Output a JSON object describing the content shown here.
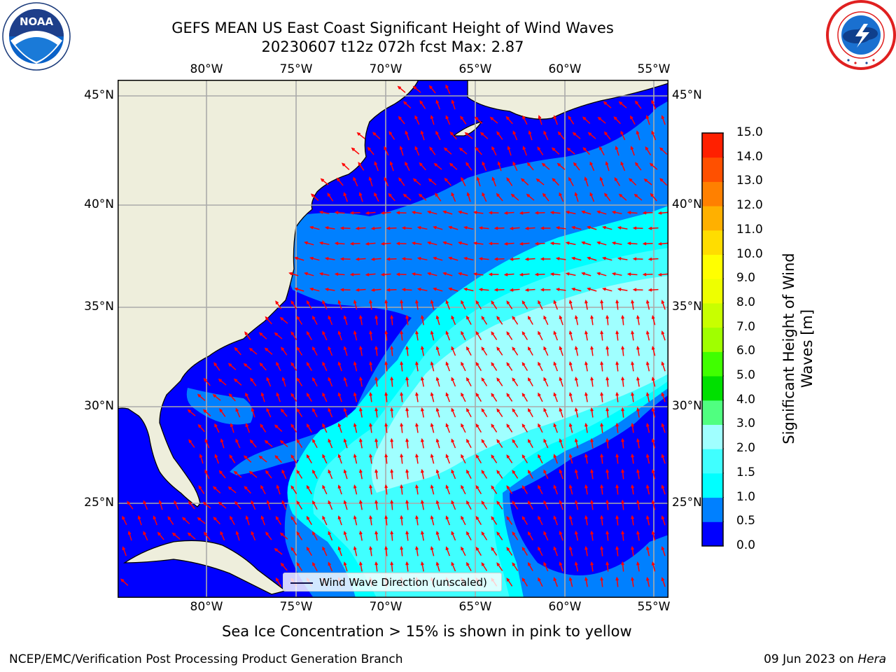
{
  "title": {
    "line1": "GEFS MEAN US East Coast Significant Height of Wind Waves",
    "line2": "20230607 t12z 072h fcst   Max: 2.87"
  },
  "logos": {
    "left": {
      "name": "noaa-logo",
      "text": "NOAA"
    },
    "right": {
      "name": "nws-logo",
      "text": "NATIONAL WEATHER SERVICE"
    }
  },
  "map": {
    "lon_labels": [
      "80°W",
      "75°W",
      "70°W",
      "65°W",
      "60°W",
      "55°W"
    ],
    "lat_labels": [
      "45°N",
      "40°N",
      "35°N",
      "30°N",
      "25°N"
    ],
    "lon_range": [
      -85,
      -54.5
    ],
    "lat_range": [
      20.5,
      46
    ],
    "grid": true,
    "land_color": "#eeeedc",
    "vector_color": "#ff0000",
    "legend_text": "Wind Wave Direction (unscaled)"
  },
  "colorbar": {
    "label": "Significant Height of Wind Waves [m]",
    "label_line1": "Significant Height of Wind",
    "label_line2": "Waves [m]",
    "ticks": [
      "0.0",
      "0.5",
      "1.0",
      "1.5",
      "2.0",
      "3.0",
      "4.0",
      "5.0",
      "6.0",
      "7.0",
      "8.0",
      "9.0",
      "10.0",
      "11.0",
      "12.0",
      "13.0",
      "14.0",
      "15.0"
    ],
    "colors": [
      "#0000ff",
      "#0080ff",
      "#00ffff",
      "#40ffff",
      "#a0ffff",
      "#50ff80",
      "#00e000",
      "#40ff00",
      "#a0ff00",
      "#c8ff00",
      "#eeff00",
      "#ffff00",
      "#ffdd00",
      "#ffb000",
      "#ff8000",
      "#ff5000",
      "#ff2000",
      "#ff0000"
    ]
  },
  "chart_data": {
    "type": "heatmap",
    "title": "GEFS MEAN US East Coast Significant Height of Wind Waves",
    "subtitle": "20230607 t12z 072h fcst   Max: 2.87",
    "max_value": 2.87,
    "units": "m",
    "xlim": [
      -85,
      -54.5
    ],
    "ylim": [
      20.5,
      46
    ],
    "regions": [
      {
        "range": "0.0-0.5",
        "areas": [
          "coastal US waters",
          "Gulf of Maine",
          "Gulf of Mexico east",
          "eastern subtropics near 55°W"
        ]
      },
      {
        "range": "0.5-1.0",
        "areas": [
          "band 35-41°N",
          "ring around central swell"
        ]
      },
      {
        "range": "1.0-2.0",
        "areas": [
          "central Atlantic 22-38°N, 55-72°W"
        ]
      },
      {
        "range": "2.0-3.0",
        "areas": [
          "core 27-37°N, 55-70°W"
        ]
      }
    ]
  },
  "notes": {
    "ice": "Sea Ice Concentration > 15% is shown in pink to yellow",
    "branch": "NCEP/EMC/Verification Post Processing Product Generation Branch",
    "date": "09 Jun 2023 on ",
    "machine": "Hera"
  }
}
